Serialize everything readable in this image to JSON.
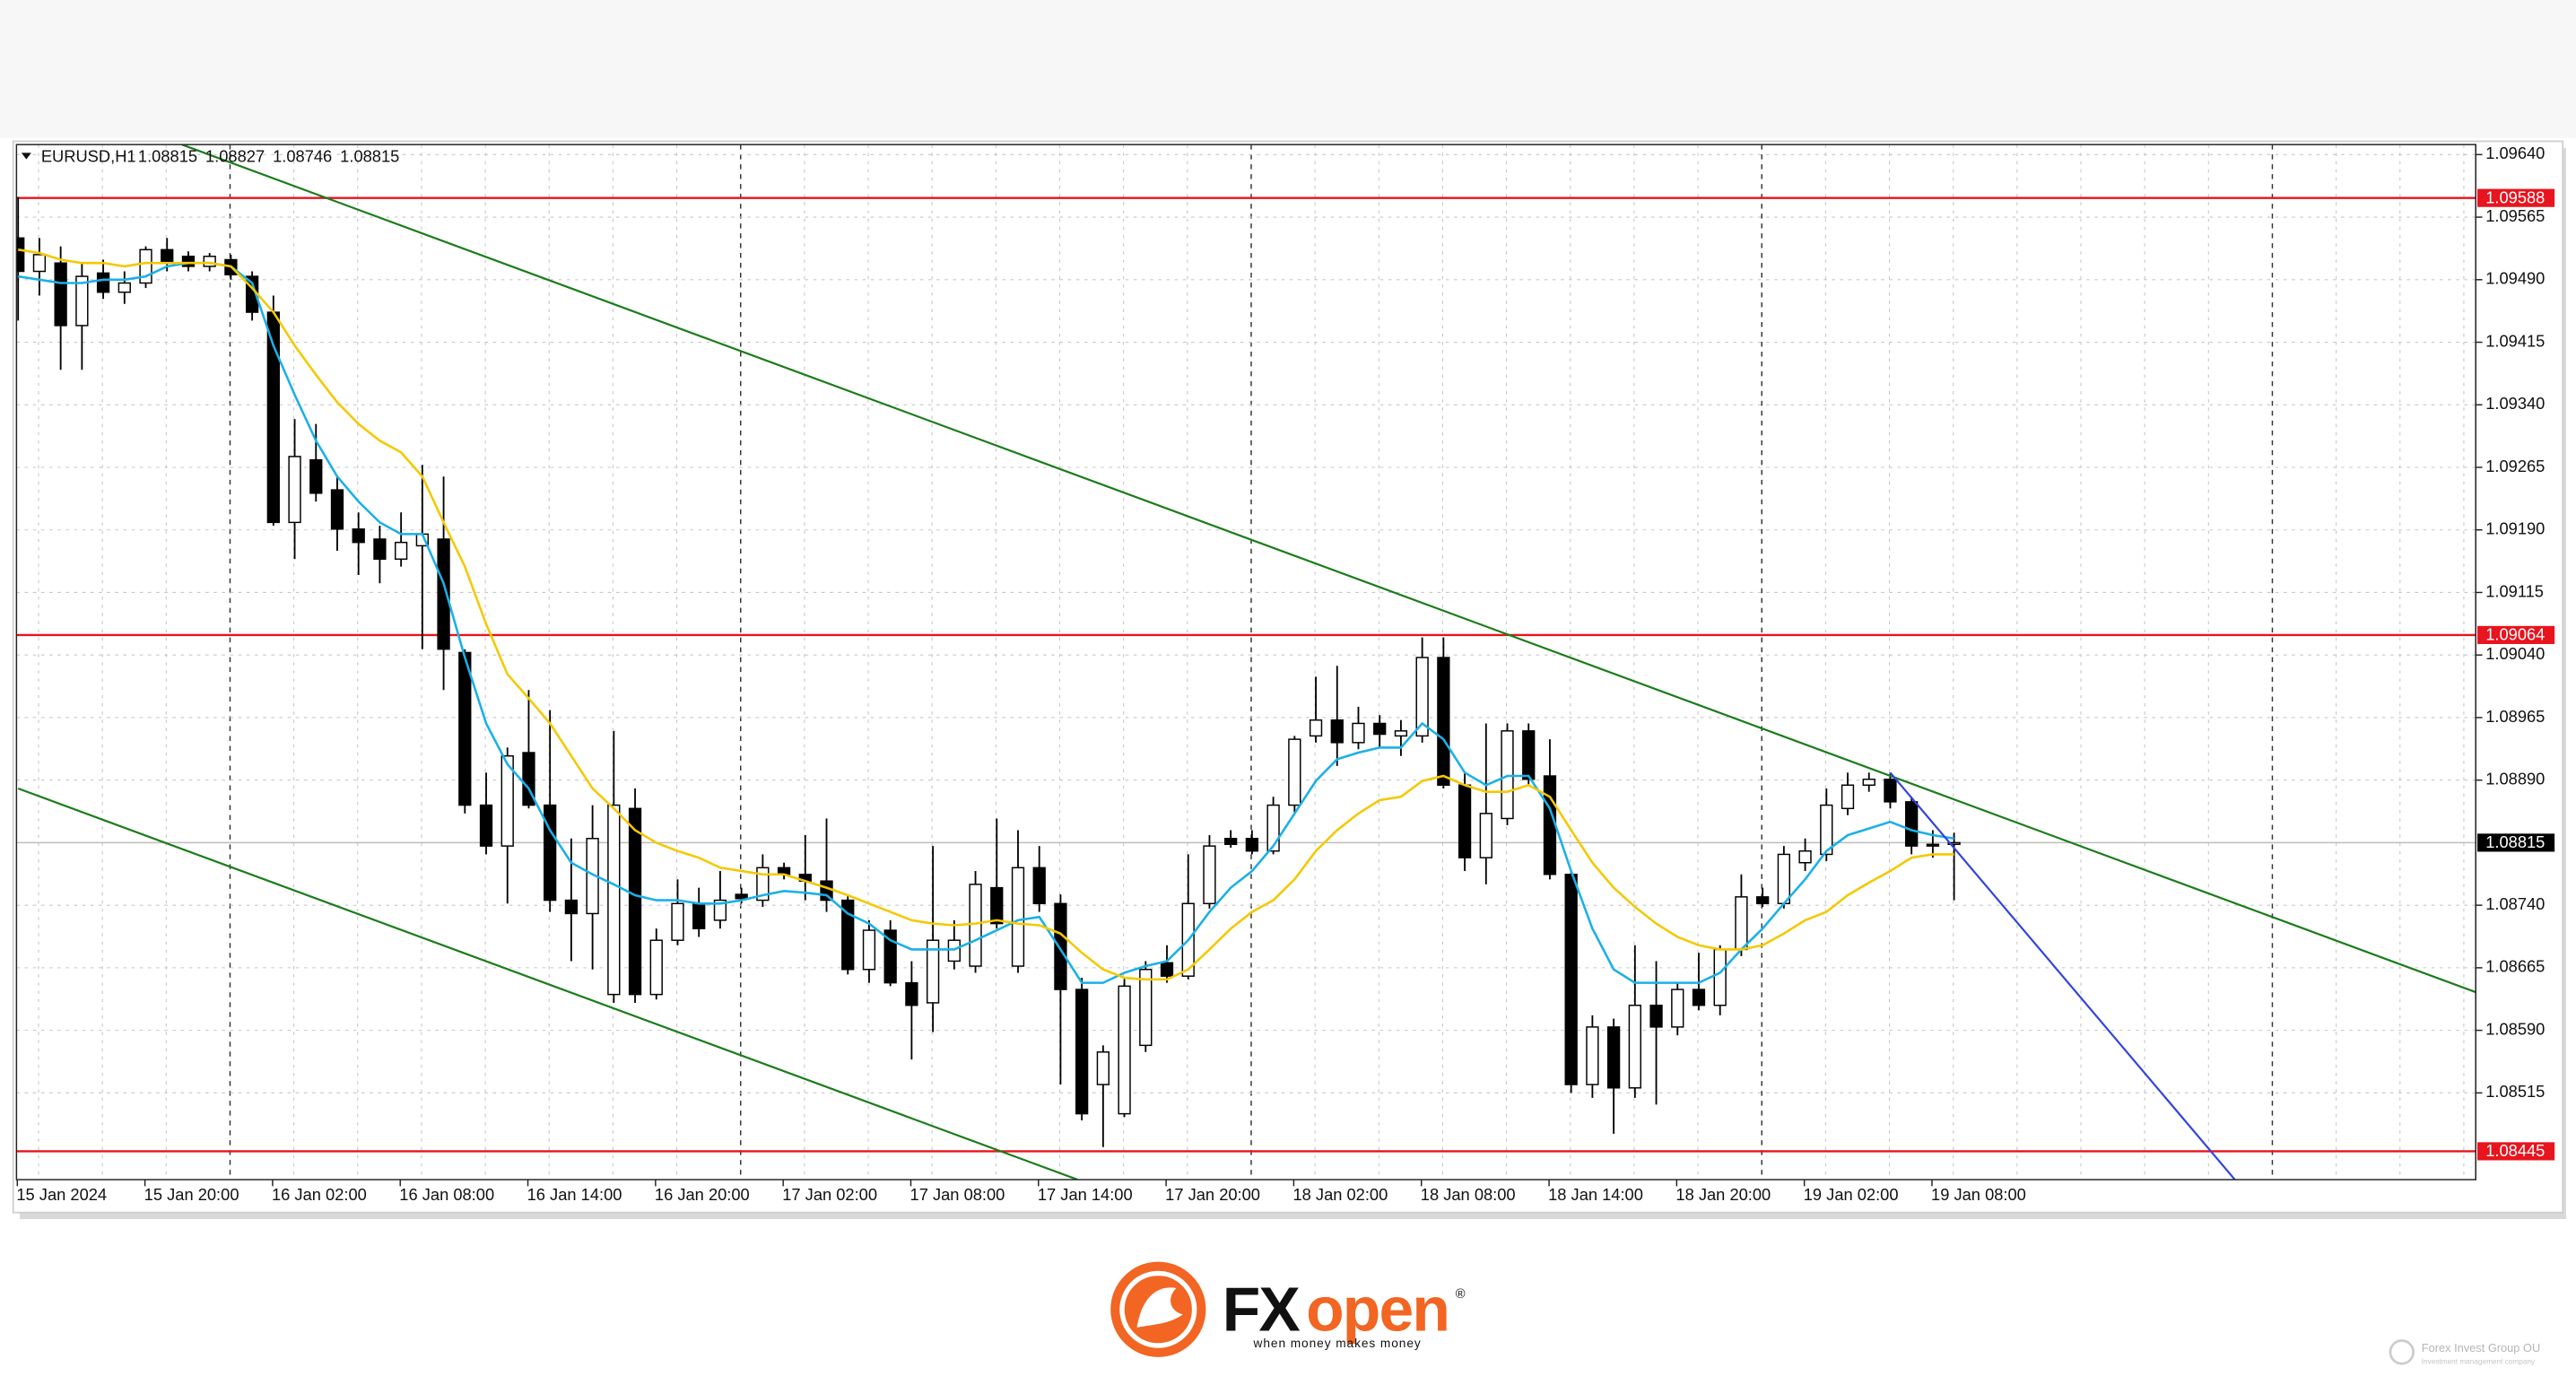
{
  "chart_data": {
    "type": "candlestick",
    "symbol": "EURUSD,H1",
    "categories": [
      "15 Jan 2024",
      null,
      null,
      null,
      null,
      null,
      "15 Jan 20:00",
      null,
      null,
      null,
      null,
      null,
      "16 Jan 02:00",
      null,
      null,
      null,
      null,
      null,
      "16 Jan 08:00",
      null,
      null,
      null,
      null,
      null,
      "16 Jan 14:00",
      null,
      null,
      null,
      null,
      null,
      "16 Jan 20:00",
      null,
      null,
      null,
      null,
      null,
      "17 Jan 02:00",
      null,
      null,
      null,
      null,
      null,
      "17 Jan 08:00",
      null,
      null,
      null,
      null,
      null,
      "17 Jan 14:00",
      null,
      null,
      null,
      null,
      null,
      "17 Jan 20:00",
      null,
      null,
      null,
      null,
      null,
      "18 Jan 02:00",
      null,
      null,
      null,
      null,
      null,
      "18 Jan 08:00",
      null,
      null,
      null,
      null,
      null,
      "18 Jan 14:00",
      null,
      null,
      null,
      null,
      null,
      "18 Jan 20:00",
      null,
      null,
      null,
      null,
      null,
      "19 Jan 02:00",
      null,
      null,
      null,
      null,
      null,
      "19 Jan 08:00",
      null
    ],
    "open": [
      1.0954,
      1.095,
      1.0951,
      1.09435,
      1.09498,
      1.09475,
      1.09486,
      1.09526,
      1.09518,
      1.09506,
      1.09514,
      1.09494,
      1.09451,
      1.09199,
      1.09274,
      1.09238,
      1.09191,
      1.09179,
      1.09155,
      1.09171,
      1.09179,
      1.09043,
      1.0886,
      1.08811,
      1.08923,
      1.0886,
      1.08746,
      1.0873,
      1.08633,
      1.08856,
      1.08633,
      1.08698,
      1.08742,
      1.08722,
      1.08753,
      1.08746,
      1.08785,
      1.08777,
      1.08769,
      1.08746,
      1.08663,
      1.0871,
      1.08647,
      1.08623,
      1.08673,
      1.08667,
      1.08761,
      1.08667,
      1.08785,
      1.08742,
      1.08639,
      1.08525,
      1.0849,
      1.08572,
      1.08671,
      1.08655,
      1.08742,
      1.0882,
      1.0882,
      1.08805,
      1.0886,
      1.08943,
      1.08962,
      1.08935,
      1.08958,
      1.08943,
      1.08943,
      1.09037,
      1.08884,
      1.08797,
      1.08844,
      1.08949,
      1.08895,
      1.08777,
      1.08525,
      1.08594,
      1.08521,
      1.0862,
      1.08594,
      1.08639,
      1.0862,
      1.08687,
      1.0875,
      1.08742,
      1.08791,
      1.08801,
      1.08856,
      1.08884,
      1.08891,
      1.08864,
      1.08813,
      1.08815
    ],
    "high": [
      1.09589,
      1.0954,
      1.0953,
      1.0951,
      1.09514,
      1.095,
      1.0953,
      1.0954,
      1.09524,
      1.09522,
      1.0952,
      1.095,
      1.09471,
      1.09323,
      1.09317,
      1.09254,
      1.09211,
      1.09195,
      1.09211,
      1.09268,
      1.09254,
      1.09047,
      1.08899,
      1.08929,
      1.08998,
      1.08974,
      1.0882,
      1.0886,
      1.08949,
      1.0888,
      1.08712,
      1.08771,
      1.08761,
      1.08781,
      1.08761,
      1.08801,
      1.08791,
      1.08824,
      1.08844,
      1.08753,
      1.08722,
      1.08722,
      1.08673,
      1.08811,
      1.08722,
      1.08781,
      1.08844,
      1.0883,
      1.08811,
      1.08753,
      1.08653,
      1.08572,
      1.08653,
      1.08673,
      1.08692,
      1.08801,
      1.08824,
      1.0883,
      1.0883,
      1.0887,
      1.08943,
      1.09014,
      1.09027,
      1.08978,
      1.08968,
      1.08962,
      1.09061,
      1.09061,
      1.08899,
      1.08958,
      1.08958,
      1.08958,
      1.08939,
      1.08781,
      1.08608,
      1.08604,
      1.08692,
      1.08673,
      1.08647,
      1.08683,
      1.08692,
      1.08777,
      1.08761,
      1.08811,
      1.0882,
      1.0888,
      1.08899,
      1.08899,
      1.08899,
      1.0887,
      1.0883,
      1.08827
    ],
    "low": [
      1.09441,
      1.09471,
      1.09382,
      1.09382,
      1.09467,
      1.09461,
      1.0948,
      1.095,
      1.095,
      1.095,
      1.0949,
      1.09441,
      1.09195,
      1.09155,
      1.09224,
      1.09165,
      1.09136,
      1.09126,
      1.09146,
      1.09047,
      1.08998,
      1.0885,
      1.08801,
      1.08742,
      1.08856,
      1.08732,
      1.08673,
      1.08663,
      1.08623,
      1.08623,
      1.08627,
      1.08692,
      1.08702,
      1.08712,
      1.08742,
      1.08738,
      1.08771,
      1.08746,
      1.08732,
      1.08657,
      1.08647,
      1.08643,
      1.08555,
      1.08588,
      1.08663,
      1.08659,
      1.08712,
      1.08659,
      1.08732,
      1.08525,
      1.08482,
      1.0845,
      1.08486,
      1.08564,
      1.08647,
      1.08651,
      1.08736,
      1.08809,
      1.08801,
      1.08801,
      1.0885,
      1.08935,
      1.08907,
      1.08927,
      1.08929,
      1.08919,
      1.08935,
      1.0888,
      1.08781,
      1.08765,
      1.08836,
      1.08884,
      1.08771,
      1.08515,
      1.08509,
      1.08466,
      1.08509,
      1.08501,
      1.08584,
      1.08614,
      1.08608,
      1.08679,
      1.08738,
      1.08736,
      1.08781,
      1.08793,
      1.08848,
      1.08876,
      1.08856,
      1.08801,
      1.08797,
      1.08746
    ],
    "close": [
      1.095,
      1.0952,
      1.09435,
      1.09494,
      1.09475,
      1.09486,
      1.09526,
      1.0951,
      1.09506,
      1.09518,
      1.09496,
      1.09451,
      1.09199,
      1.09278,
      1.09234,
      1.09191,
      1.09175,
      1.09155,
      1.09175,
      1.09185,
      1.09047,
      1.0886,
      1.08811,
      1.08919,
      1.0886,
      1.08746,
      1.0873,
      1.0882,
      1.0886,
      1.08633,
      1.08698,
      1.08742,
      1.08712,
      1.08746,
      1.08748,
      1.08785,
      1.08777,
      1.08769,
      1.08746,
      1.08663,
      1.0871,
      1.08647,
      1.0862,
      1.08698,
      1.08698,
      1.08765,
      1.08718,
      1.08785,
      1.08742,
      1.08639,
      1.0849,
      1.08564,
      1.08643,
      1.08663,
      1.08655,
      1.08742,
      1.08811,
      1.08813,
      1.08805,
      1.0886,
      1.08939,
      1.08962,
      1.08935,
      1.08958,
      1.08945,
      1.08949,
      1.09037,
      1.08884,
      1.08797,
      1.0885,
      1.08949,
      1.08891,
      1.08777,
      1.08525,
      1.08594,
      1.08521,
      1.0862,
      1.08594,
      1.08639,
      1.0862,
      1.08687,
      1.0875,
      1.08742,
      1.08801,
      1.08805,
      1.0886,
      1.08884,
      1.08891,
      1.08864,
      1.08811,
      1.08811,
      1.08815
    ],
    "up_color": "#ffffff",
    "down_color": "#000000",
    "overlays": [
      {
        "color": "#1ab0e8",
        "values": [
          1.09494,
          1.0949,
          1.09486,
          1.09486,
          1.0949,
          1.0949,
          1.09494,
          1.09506,
          1.0951,
          1.0951,
          1.09506,
          1.09486,
          1.09411,
          1.09352,
          1.09297,
          1.09254,
          1.09224,
          1.09199,
          1.09185,
          1.09185,
          1.09126,
          1.09037,
          1.08958,
          1.08909,
          1.0888,
          1.0883,
          1.08791,
          1.08777,
          1.08765,
          1.08752,
          1.08746,
          1.08746,
          1.08742,
          1.08742,
          1.08746,
          1.08752,
          1.08757,
          1.08755,
          1.08752,
          1.0873,
          1.08718,
          1.08698,
          1.08687,
          1.08687,
          1.08687,
          1.08698,
          1.0871,
          1.08722,
          1.08726,
          1.08687,
          1.08647,
          1.08647,
          1.08659,
          1.08667,
          1.08673,
          1.08698,
          1.08732,
          1.08761,
          1.08781,
          1.08811,
          1.0885,
          1.08889,
          1.08915,
          1.08923,
          1.08929,
          1.08929,
          1.08958,
          1.08939,
          1.08899,
          1.08884,
          1.08895,
          1.08895,
          1.08856,
          1.08781,
          1.08712,
          1.08663,
          1.08647,
          1.08647,
          1.08647,
          1.08647,
          1.08659,
          1.08687,
          1.08712,
          1.08742,
          1.08771,
          1.08805,
          1.08824,
          1.08832,
          1.0884,
          1.0883,
          1.08824,
          1.0882
        ]
      },
      {
        "color": "#f5c800",
        "values": [
          1.09526,
          1.09522,
          1.09514,
          1.0951,
          1.0951,
          1.09506,
          1.0951,
          1.0951,
          1.0951,
          1.0951,
          1.09506,
          1.0948,
          1.09451,
          1.09411,
          1.09376,
          1.09343,
          1.09317,
          1.09297,
          1.09283,
          1.09254,
          1.09199,
          1.09146,
          1.09077,
          1.09017,
          1.08988,
          1.08958,
          1.08919,
          1.0888,
          1.08856,
          1.0883,
          1.08815,
          1.08805,
          1.08797,
          1.08785,
          1.08781,
          1.08777,
          1.08777,
          1.08769,
          1.08761,
          1.08752,
          1.08742,
          1.08732,
          1.08722,
          1.08718,
          1.08716,
          1.08718,
          1.08722,
          1.08718,
          1.08716,
          1.08706,
          1.08683,
          1.08663,
          1.08653,
          1.08651,
          1.08651,
          1.08663,
          1.08687,
          1.08712,
          1.08732,
          1.08746,
          1.08771,
          1.08805,
          1.0883,
          1.0885,
          1.08866,
          1.0887,
          1.08889,
          1.08895,
          1.08884,
          1.08876,
          1.08876,
          1.08884,
          1.0887,
          1.0883,
          1.08791,
          1.08761,
          1.08738,
          1.08718,
          1.08702,
          1.08692,
          1.08687,
          1.08687,
          1.08692,
          1.08706,
          1.08722,
          1.08732,
          1.08752,
          1.08767,
          1.08781,
          1.08797,
          1.08801,
          1.08801
        ]
      }
    ],
    "levels": [
      {
        "value": 1.09588
      },
      {
        "value": 1.09064
      },
      {
        "value": 1.08445
      }
    ],
    "level_color": "#e8141e",
    "trendlines": [
      {
        "color": "#1a7d1a",
        "x": [
          7.7,
          115.6
        ],
        "y": [
          1.09652,
          1.08635
        ]
      },
      {
        "color": "#1a7d1a",
        "x": [
          0,
          49.8
        ],
        "y": [
          1.0888,
          1.08411
        ]
      },
      {
        "color": "#3344dd",
        "x": [
          88,
          104.2
        ],
        "y": [
          1.08899,
          1.08411
        ]
      }
    ],
    "ylim": [
      1.08411,
      1.09652
    ],
    "yticks": [
      {
        "value": 1.0964,
        "label": "1.09640"
      },
      1.09565,
      {
        "value": 1.0949,
        "label": "1.09490"
      },
      1.09415,
      {
        "value": 1.0934,
        "label": "1.09340"
      },
      1.09265,
      {
        "value": 1.0919,
        "label": "1.09190"
      },
      1.09115,
      {
        "value": 1.0904,
        "label": "1.09040"
      },
      1.08965,
      {
        "value": 1.0889,
        "label": "1.08890"
      },
      {
        "value": 1.0874,
        "label": "1.08740"
      },
      1.08665,
      {
        "value": 1.0859,
        "label": "1.08590"
      },
      1.08515
    ],
    "grid": true
  },
  "footer": {
    "brand_fx": "FX",
    "brand_open": "open",
    "registered": "®",
    "tagline": "when money makes money",
    "watermark": "Forex Invest Group OU",
    "watermark_sub": "Investment management company"
  }
}
